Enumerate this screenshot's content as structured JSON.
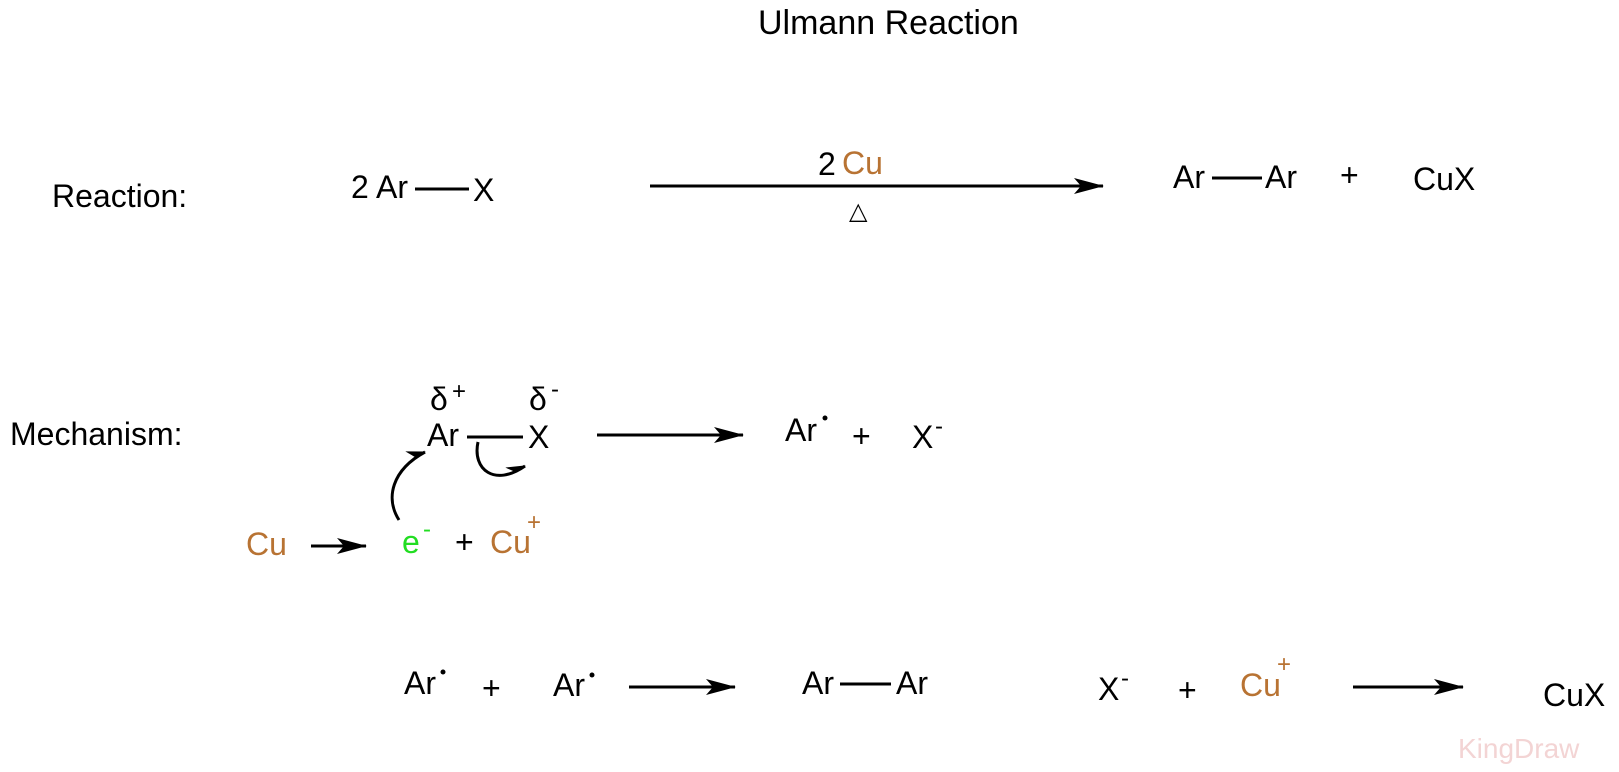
{
  "title": "Ulmann Reaction",
  "reaction": {
    "label": "Reaction:",
    "coef": "2",
    "reactant_a": "Ar",
    "reactant_b": "X",
    "reagent_coef": "2",
    "reagent": "Cu",
    "condition": "△",
    "product_a": "Ar",
    "product_b": "Ar",
    "plus": "+",
    "byproduct": "CuX"
  },
  "mechanism": {
    "label": "Mechanism:",
    "partial_pos": "δ",
    "partial_pos_sup": "+",
    "partial_neg": "δ",
    "partial_neg_sup": "-",
    "atom_ar": "Ar",
    "atom_x": "X",
    "radical": "Ar",
    "plus": "+",
    "anion": "X",
    "anion_sup": "-",
    "cu": "Cu",
    "electron": "e",
    "electron_sup": "-",
    "plus2": "+",
    "cu_ion": "Cu",
    "cu_ion_sup": "+"
  },
  "step2": {
    "radical1": "Ar",
    "plus": "+",
    "radical2": "Ar",
    "product_a": "Ar",
    "product_b": "Ar"
  },
  "step3": {
    "anion": "X",
    "anion_sup": "-",
    "plus": "+",
    "cu_ion": "Cu",
    "cu_ion_sup": "+",
    "product": "CuX"
  },
  "watermark": "KingDraw",
  "colors": {
    "copper": "#b87333",
    "electron": "#22dd22",
    "watermark": "#f3d4d4"
  }
}
